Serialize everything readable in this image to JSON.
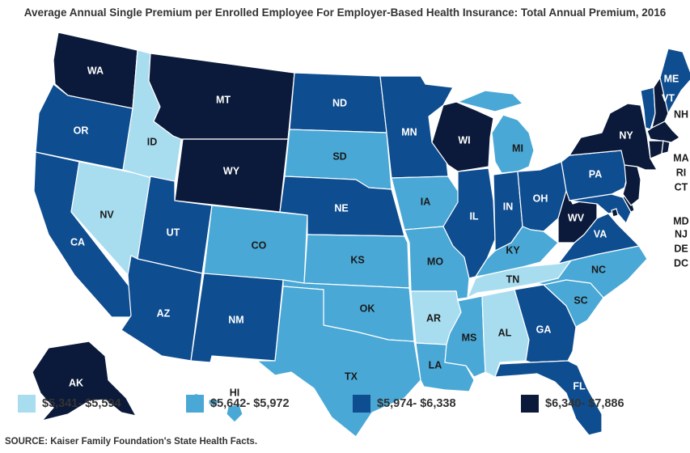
{
  "title": "Average Annual Single Premium per Enrolled Employee For Employer-Based Health Insurance: Total Annual Premium, 2016",
  "source": "SOURCE: Kaiser Family Foundation's State Health Facts.",
  "legend": [
    {
      "label": "$5,341- $5,594",
      "color": "#a8ddf0"
    },
    {
      "label": "$5,642- $5,972",
      "color": "#4aa8d6"
    },
    {
      "label": "$5,974- $6,338",
      "color": "#0e4d90"
    },
    {
      "label": "$6,340- $7,886",
      "color": "#0b1a3a"
    }
  ],
  "states": {
    "WA": 3,
    "OR": 2,
    "CA": 2,
    "NV": 0,
    "ID": 0,
    "MT": 3,
    "WY": 3,
    "UT": 2,
    "AZ": 2,
    "NM": 2,
    "CO": 1,
    "ND": 2,
    "SD": 1,
    "NE": 2,
    "KS": 1,
    "OK": 1,
    "TX": 1,
    "MN": 2,
    "IA": 1,
    "MO": 1,
    "AR": 0,
    "LA": 1,
    "WI": 3,
    "IL": 2,
    "MI": 1,
    "IN": 2,
    "OH": 2,
    "KY": 1,
    "TN": 0,
    "MS": 1,
    "AL": 0,
    "GA": 2,
    "FL": 2,
    "SC": 1,
    "NC": 1,
    "VA": 2,
    "WV": 3,
    "PA": 2,
    "NY": 3,
    "VT": 2,
    "NH": 3,
    "ME": 2,
    "MA": 3,
    "RI": 3,
    "CT": 3,
    "NJ": 3,
    "DE": 3,
    "MD": 2,
    "DC": 3,
    "AK": 3,
    "HI": 1
  },
  "labels": {
    "WA": "WA",
    "OR": "OR",
    "CA": "CA",
    "NV": "NV",
    "ID": "ID",
    "MT": "MT",
    "WY": "WY",
    "UT": "UT",
    "AZ": "AZ",
    "NM": "NM",
    "CO": "CO",
    "ND": "ND",
    "SD": "SD",
    "NE": "NE",
    "KS": "KS",
    "OK": "OK",
    "TX": "TX",
    "MN": "MN",
    "IA": "IA",
    "MO": "MO",
    "AR": "AR",
    "LA": "LA",
    "WI": "WI",
    "IL": "IL",
    "MI": "MI",
    "IN": "IN",
    "OH": "OH",
    "KY": "KY",
    "TN": "TN",
    "MS": "MS",
    "AL": "AL",
    "GA": "GA",
    "FL": "FL",
    "SC": "SC",
    "NC": "NC",
    "VA": "VA",
    "WV": "WV",
    "PA": "PA",
    "NY": "NY",
    "VT": "VT",
    "NH": "NH",
    "ME": "ME",
    "MA": "MA",
    "RI": "RI",
    "CT": "CT",
    "NJ": "NJ",
    "DE": "DE",
    "MD": "MD",
    "DC": "DC",
    "AK": "AK",
    "HI": "HI"
  }
}
